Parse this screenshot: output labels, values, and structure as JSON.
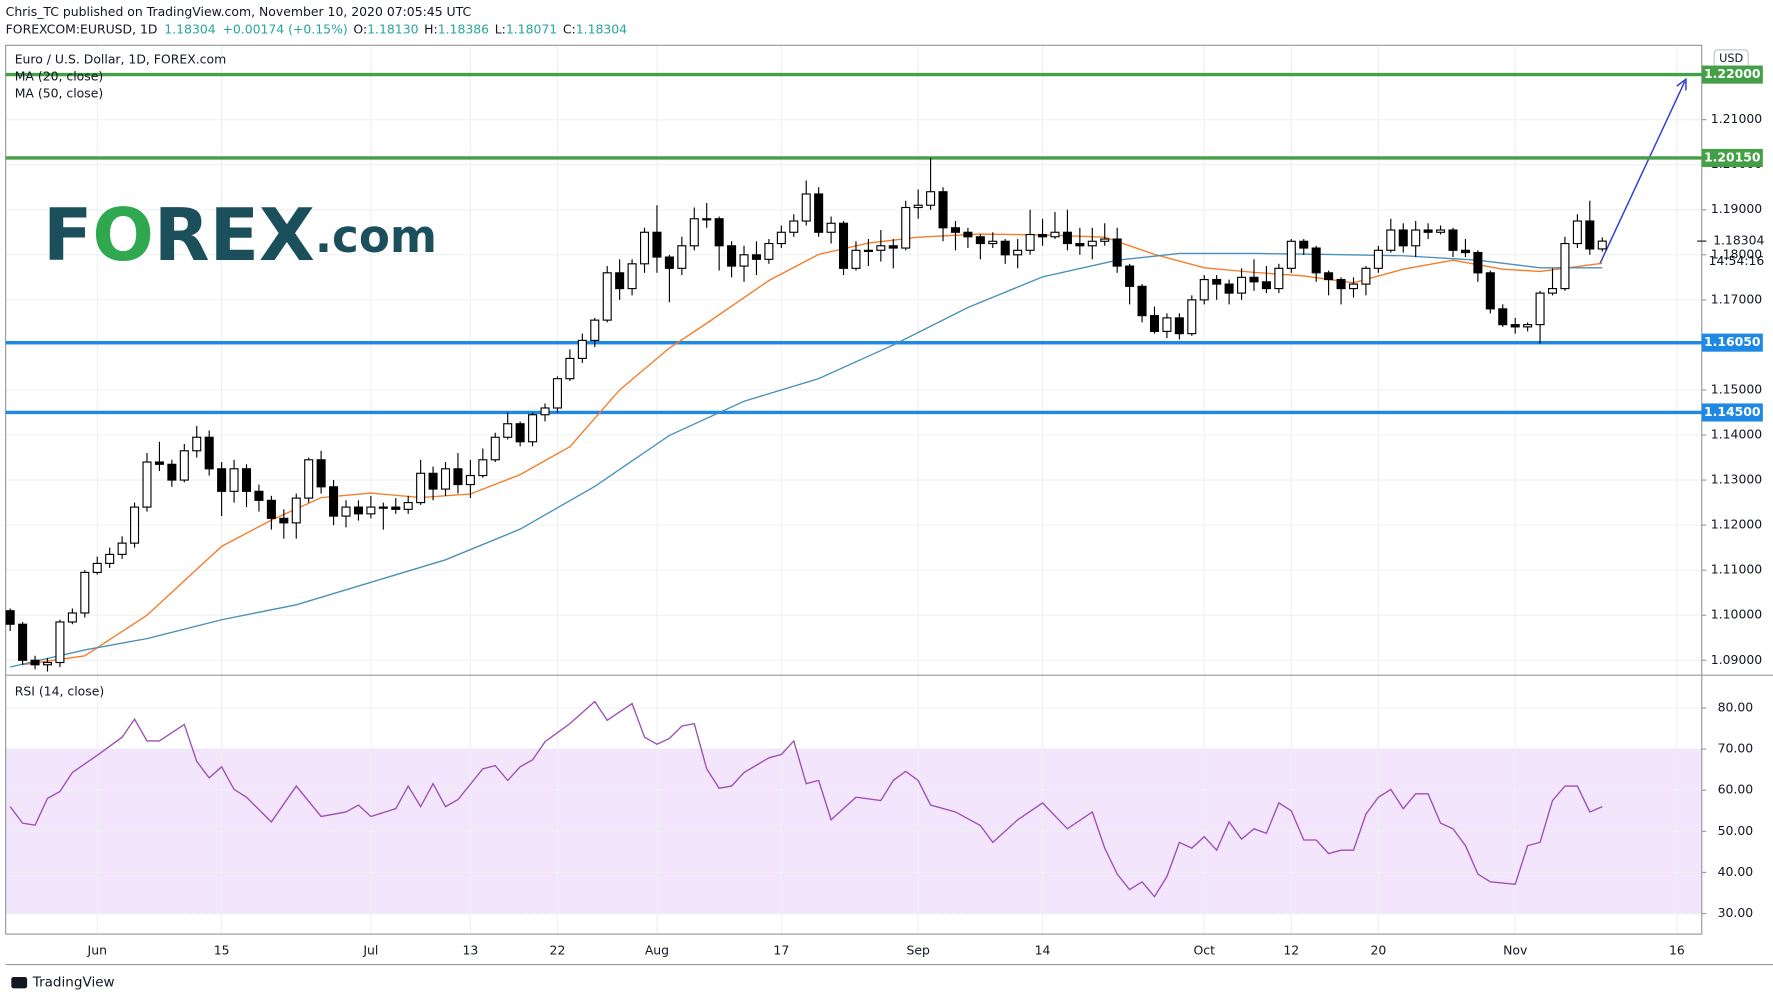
{
  "header": {
    "published": "Chris_TC published on TradingView.com, November 10, 2020 07:05:45 UTC",
    "symbol": "FOREXCOM:EURUSD, 1D",
    "price": "1.18304",
    "change": "+0.00174 (+0.15%)",
    "ohlc": [
      "O:",
      "1.18130",
      "H:",
      "1.18386",
      "L:",
      "1.18071",
      "C:",
      "1.18304"
    ],
    "logo": [
      "F",
      "O",
      "REX",
      ".com"
    ]
  },
  "footer": "TradingView",
  "chart_data": {
    "type": "candlestick",
    "title": "Euro / U.S. Dollar, 1D, FOREX.com",
    "categories": [
      null,
      null,
      null,
      null,
      null,
      null,
      null,
      "Jun",
      null,
      null,
      null,
      null,
      null,
      null,
      null,
      null,
      null,
      "15",
      null,
      null,
      null,
      null,
      null,
      null,
      null,
      null,
      null,
      null,
      null,
      "Jul",
      null,
      null,
      null,
      null,
      null,
      null,
      null,
      "13",
      null,
      null,
      null,
      null,
      null,
      null,
      "22",
      null,
      null,
      null,
      null,
      null,
      null,
      null,
      "Aug",
      null,
      null,
      null,
      null,
      null,
      null,
      null,
      null,
      null,
      "17",
      null,
      null,
      null,
      null,
      null,
      null,
      null,
      null,
      null,
      null,
      "Sep",
      null,
      null,
      null,
      null,
      null,
      null,
      null,
      null,
      null,
      "14",
      null,
      null,
      null,
      null,
      null,
      null,
      null,
      null,
      null,
      null,
      null,
      null,
      "Oct",
      null,
      null,
      null,
      null,
      null,
      null,
      "12",
      null,
      null,
      null,
      null,
      null,
      null,
      "20",
      null,
      null,
      null,
      null,
      null,
      null,
      null,
      null,
      null,
      null,
      "Nov",
      null,
      null,
      null,
      null,
      null,
      null,
      null,
      null,
      null,
      null,
      null,
      null,
      "16"
    ],
    "open": [
      1.101,
      1.098,
      1.09,
      1.089,
      1.0895,
      1.0985,
      1.1005,
      1.1095,
      1.1115,
      1.1135,
      1.116,
      1.124,
      1.134,
      1.1335,
      1.13,
      1.1365,
      1.1395,
      1.1325,
      1.1275,
      1.1325,
      1.1275,
      1.1255,
      1.1215,
      1.1205,
      1.126,
      1.1345,
      1.1285,
      1.122,
      1.124,
      1.1225,
      1.124,
      1.124,
      1.1235,
      1.125,
      1.1315,
      1.128,
      1.1325,
      1.129,
      1.131,
      1.1345,
      1.1395,
      1.1425,
      1.1385,
      1.1445,
      1.146,
      1.1525,
      1.157,
      1.161,
      1.1655,
      1.176,
      1.1725,
      1.178,
      1.185,
      1.1795,
      1.177,
      1.182,
      1.188,
      1.188,
      1.182,
      1.1775,
      1.18,
      1.179,
      1.1825,
      1.185,
      1.1875,
      1.1935,
      1.185,
      1.187,
      1.177,
      1.181,
      1.181,
      1.182,
      1.1815,
      1.1905,
      1.191,
      1.194,
      1.186,
      1.185,
      1.184,
      1.1825,
      1.183,
      1.18,
      1.181,
      1.1845,
      1.184,
      1.185,
      1.1825,
      1.182,
      1.183,
      1.1835,
      1.1775,
      1.173,
      1.1665,
      1.163,
      1.166,
      1.1625,
      1.17,
      1.1745,
      1.1735,
      1.1715,
      1.175,
      1.174,
      1.1725,
      1.177,
      1.183,
      1.1815,
      1.176,
      1.1745,
      1.1725,
      1.1735,
      1.177,
      1.181,
      1.1855,
      1.182,
      1.1855,
      1.185,
      1.1855,
      1.181,
      1.1805,
      1.176,
      1.168,
      1.1645,
      1.164,
      1.1645,
      1.1715,
      1.1725,
      1.1825,
      1.1875,
      1.1813,
      null,
      null,
      null,
      null,
      null,
      null
    ],
    "high": [
      1.1015,
      1.0985,
      1.091,
      1.0905,
      1.099,
      1.1015,
      1.11,
      1.113,
      1.115,
      1.1175,
      1.125,
      1.136,
      1.1385,
      1.1345,
      1.138,
      1.142,
      1.141,
      1.134,
      1.1345,
      1.1335,
      1.129,
      1.1265,
      1.1235,
      1.127,
      1.135,
      1.1365,
      1.13,
      1.1255,
      1.1255,
      1.1265,
      1.125,
      1.126,
      1.1265,
      1.1345,
      1.133,
      1.134,
      1.136,
      1.1345,
      1.137,
      1.1405,
      1.145,
      1.143,
      1.145,
      1.147,
      1.153,
      1.159,
      1.1625,
      1.166,
      1.1775,
      1.179,
      1.179,
      1.186,
      1.191,
      1.18,
      1.184,
      1.1905,
      1.1915,
      1.1885,
      1.183,
      1.182,
      1.183,
      1.1835,
      1.1865,
      1.189,
      1.1965,
      1.195,
      1.1885,
      1.1875,
      1.183,
      1.1835,
      1.1855,
      1.1835,
      1.192,
      1.1945,
      1.2015,
      1.195,
      1.1875,
      1.186,
      1.1845,
      1.185,
      1.1835,
      1.1835,
      1.19,
      1.188,
      1.1895,
      1.19,
      1.186,
      1.186,
      1.187,
      1.186,
      1.178,
      1.1735,
      1.1685,
      1.167,
      1.167,
      1.171,
      1.1755,
      1.1755,
      1.1745,
      1.177,
      1.179,
      1.1775,
      1.178,
      1.1835,
      1.1835,
      1.182,
      1.1765,
      1.175,
      1.175,
      1.1775,
      1.182,
      1.188,
      1.187,
      1.1875,
      1.187,
      1.1865,
      1.186,
      1.1835,
      1.181,
      1.1765,
      1.169,
      1.166,
      1.165,
      1.172,
      1.177,
      1.184,
      1.189,
      1.192,
      1.18386,
      null,
      null,
      null,
      null,
      null,
      null
    ],
    "low": [
      1.0965,
      1.089,
      1.088,
      1.0875,
      1.0885,
      1.098,
      1.0995,
      1.109,
      1.1105,
      1.1125,
      1.115,
      1.123,
      1.132,
      1.1285,
      1.1295,
      1.135,
      1.131,
      1.122,
      1.125,
      1.124,
      1.123,
      1.119,
      1.117,
      1.117,
      1.125,
      1.127,
      1.12,
      1.1195,
      1.121,
      1.1215,
      1.119,
      1.1225,
      1.1225,
      1.1245,
      1.1255,
      1.1265,
      1.127,
      1.126,
      1.1305,
      1.134,
      1.139,
      1.1375,
      1.1375,
      1.143,
      1.145,
      1.152,
      1.156,
      1.1595,
      1.165,
      1.17,
      1.171,
      1.176,
      1.176,
      1.1695,
      1.1755,
      1.181,
      1.186,
      1.1765,
      1.175,
      1.174,
      1.1755,
      1.178,
      1.1815,
      1.184,
      1.1865,
      1.184,
      1.1825,
      1.1755,
      1.1765,
      1.1775,
      1.1785,
      1.177,
      1.181,
      1.188,
      1.19,
      1.183,
      1.181,
      1.1815,
      1.179,
      1.1815,
      1.178,
      1.177,
      1.18,
      1.182,
      1.1835,
      1.181,
      1.18,
      1.179,
      1.182,
      1.176,
      1.169,
      1.165,
      1.1625,
      1.1615,
      1.1612,
      1.162,
      1.169,
      1.17,
      1.169,
      1.17,
      1.172,
      1.1715,
      1.1715,
      1.176,
      1.18,
      1.174,
      1.171,
      1.169,
      1.1705,
      1.171,
      1.176,
      1.1805,
      1.1805,
      1.1795,
      1.1835,
      1.1845,
      1.1795,
      1.1795,
      1.174,
      1.167,
      1.164,
      1.1625,
      1.163,
      1.1603,
      1.171,
      1.172,
      1.1815,
      1.18,
      1.18071,
      null,
      null,
      null,
      null,
      null,
      null
    ],
    "close": [
      1.098,
      1.09,
      1.089,
      1.0895,
      1.0985,
      1.1005,
      1.1095,
      1.1115,
      1.1135,
      1.116,
      1.124,
      1.134,
      1.1335,
      1.13,
      1.1365,
      1.1395,
      1.1325,
      1.1275,
      1.1325,
      1.1275,
      1.1255,
      1.1215,
      1.1205,
      1.126,
      1.1345,
      1.1285,
      1.122,
      1.124,
      1.1225,
      1.124,
      1.124,
      1.1235,
      1.125,
      1.1315,
      1.128,
      1.1325,
      1.129,
      1.131,
      1.1345,
      1.1395,
      1.1425,
      1.1385,
      1.1445,
      1.146,
      1.1525,
      1.157,
      1.161,
      1.1655,
      1.176,
      1.1725,
      1.178,
      1.185,
      1.1795,
      1.177,
      1.182,
      1.188,
      1.188,
      1.182,
      1.1775,
      1.18,
      1.179,
      1.1825,
      1.185,
      1.1875,
      1.1935,
      1.185,
      1.187,
      1.177,
      1.181,
      1.181,
      1.182,
      1.1815,
      1.1905,
      1.191,
      1.194,
      1.186,
      1.185,
      1.184,
      1.1825,
      1.183,
      1.18,
      1.181,
      1.1845,
      1.184,
      1.185,
      1.1825,
      1.182,
      1.183,
      1.1835,
      1.1775,
      1.173,
      1.1665,
      1.163,
      1.166,
      1.1625,
      1.17,
      1.1745,
      1.1735,
      1.1715,
      1.175,
      1.174,
      1.1725,
      1.177,
      1.183,
      1.1815,
      1.176,
      1.1745,
      1.1725,
      1.1735,
      1.177,
      1.181,
      1.1855,
      1.182,
      1.1855,
      1.185,
      1.1855,
      1.181,
      1.1805,
      1.176,
      1.168,
      1.1645,
      1.164,
      1.1645,
      1.1715,
      1.1725,
      1.1825,
      1.1875,
      1.1813,
      1.18304,
      null,
      null,
      null,
      null,
      null,
      null
    ],
    "up_color": "#ffffff",
    "down_color": "#000000",
    "ylim": [
      1.0867,
      1.2265
    ],
    "yticks": [
      {
        "value": 1.09,
        "label": "1.09000"
      },
      {
        "value": 1.1,
        "label": "1.10000"
      },
      {
        "value": 1.11,
        "label": "1.11000"
      },
      {
        "value": 1.12,
        "label": "1.12000"
      },
      {
        "value": 1.13,
        "label": "1.13000"
      },
      {
        "value": 1.14,
        "label": "1.14000"
      },
      {
        "value": 1.15,
        "label": "1.15000"
      },
      {
        "value": 1.16,
        "label": "1.16000"
      },
      {
        "value": 1.17,
        "label": "1.17000"
      },
      {
        "value": 1.18,
        "label": "1.18000"
      },
      {
        "value": 1.19,
        "label": "1.19000"
      },
      {
        "value": 1.2,
        "label": "1.20000"
      },
      {
        "value": 1.21,
        "label": "1.21000"
      }
    ],
    "grid": true,
    "currency": "USD",
    "last": {
      "value": 1.18304,
      "label": "1.18304"
    },
    "countdown": "14:54:16",
    "levels": [
      {
        "value": 1.22,
        "label": "1.22000",
        "color": "#43a047"
      },
      {
        "value": 1.2015,
        "label": "1.20150",
        "color": "#43a047"
      },
      {
        "value": 1.1605,
        "label": "1.16050",
        "color": "#1e88e5"
      },
      {
        "value": 1.145,
        "label": "1.14500",
        "color": "#1e88e5"
      }
    ],
    "ma": [
      {
        "name": "MA (20, close)",
        "color": "#f57c2a",
        "x": [
          1,
          6,
          11,
          17,
          21,
          25,
          29,
          33,
          37,
          41,
          45,
          49,
          53,
          56,
          61,
          65,
          69,
          73,
          78,
          83,
          88,
          92,
          96,
          100,
          104,
          108,
          112,
          116,
          120,
          123,
          128
        ],
        "values": [
          1.089,
          1.091,
          1.1,
          1.1153,
          1.1211,
          1.1261,
          1.1271,
          1.1261,
          1.1269,
          1.1312,
          1.1374,
          1.15,
          1.1593,
          1.1648,
          1.1743,
          1.1801,
          1.1826,
          1.1839,
          1.1846,
          1.1844,
          1.1839,
          1.1801,
          1.1771,
          1.1761,
          1.1753,
          1.1738,
          1.1768,
          1.1788,
          1.1768,
          1.1763,
          1.1781
        ]
      },
      {
        "name": "MA (50, close)",
        "color": "#4a90b8",
        "x": [
          0,
          6,
          11,
          17,
          23,
          29,
          35,
          41,
          47,
          53,
          59,
          65,
          71,
          77,
          83,
          89,
          94,
          100,
          106,
          112,
          118,
          123,
          128
        ],
        "values": [
          1.0885,
          1.0923,
          1.0948,
          1.099,
          1.1023,
          1.1073,
          1.1123,
          1.1191,
          1.1286,
          1.1399,
          1.1475,
          1.1525,
          1.16,
          1.1683,
          1.1751,
          1.1788,
          1.1803,
          1.1803,
          1.1801,
          1.1798,
          1.1788,
          1.1771,
          1.1771
        ]
      }
    ],
    "rsi": {
      "name": "RSI (14, close)",
      "color": "#9c4fb5",
      "band": [
        30,
        70
      ],
      "band_color": "#f3e5fb",
      "ylim": [
        25,
        88
      ],
      "yticks": [
        {
          "value": 30,
          "label": "30.00"
        },
        {
          "value": 40,
          "label": "40.00"
        },
        {
          "value": 50,
          "label": "50.00"
        },
        {
          "value": 60,
          "label": "60.00"
        },
        {
          "value": 70,
          "label": "70.00"
        },
        {
          "value": 80,
          "label": "80.00"
        }
      ],
      "x": [
        0,
        1,
        2,
        3,
        4,
        5,
        7,
        9,
        10,
        11,
        12,
        14,
        15,
        16,
        17,
        18,
        19,
        21,
        23,
        25,
        27,
        28,
        29,
        31,
        32,
        33,
        34,
        35,
        36,
        38,
        39,
        40,
        41,
        42,
        43,
        44,
        45,
        47,
        48,
        50,
        51,
        52,
        53,
        54,
        55,
        56,
        57,
        58,
        59,
        61,
        62,
        63,
        64,
        65,
        66,
        68,
        70,
        71,
        72,
        73,
        74,
        76,
        78,
        79,
        81,
        83,
        85,
        87,
        88,
        89,
        90,
        91,
        92,
        93,
        94,
        95,
        96,
        97,
        98,
        99,
        100,
        101,
        102,
        103,
        104,
        105,
        106,
        107,
        108,
        109,
        110,
        111,
        112,
        113,
        114,
        115,
        116,
        117,
        118,
        119,
        121,
        122,
        123,
        124,
        125,
        126,
        127,
        128
      ],
      "values": [
        56,
        52,
        51.5,
        58,
        59.7,
        64.3,
        68.5,
        72.9,
        77.3,
        72,
        72,
        76,
        67,
        63,
        65.7,
        60.2,
        58.3,
        52.3,
        61,
        53.6,
        54.7,
        56.4,
        53.6,
        55.5,
        61,
        56,
        61.6,
        56,
        57.7,
        65.2,
        66,
        62.4,
        65.7,
        67.4,
        71.8,
        74,
        76.2,
        81.6,
        77,
        81.1,
        72.9,
        71.2,
        72.6,
        75.6,
        76.2,
        65.2,
        60.5,
        61,
        64.3,
        67.9,
        68.7,
        72,
        61.6,
        62.4,
        52.8,
        58.3,
        57.5,
        62.4,
        64.6,
        62.4,
        56.4,
        54.7,
        51.4,
        47.3,
        52.8,
        56.9,
        50.6,
        54.7,
        45.9,
        39.6,
        35.8,
        37.7,
        34.1,
        39,
        47.3,
        45.9,
        48.7,
        45.4,
        52.3,
        48.1,
        50.6,
        49.5,
        56.9,
        55,
        47.9,
        47.9,
        44.6,
        45.4,
        45.4,
        54.2,
        58.3,
        60.2,
        55.5,
        59.1,
        59.1,
        52,
        50.6,
        46.5,
        39.6,
        37.7,
        37.1,
        46.5,
        47.3,
        57.5,
        61,
        61,
        54.7,
        56
      ]
    }
  }
}
